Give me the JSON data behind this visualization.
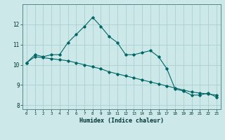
{
  "xlabel": "Humidex (Indice chaleur)",
  "bg_color": "#cce8e8",
  "grid_color": "#aacfcf",
  "line_color": "#006666",
  "xlim": [
    -0.5,
    23.5
  ],
  "ylim": [
    7.8,
    13.0
  ],
  "yticks": [
    8,
    9,
    10,
    11,
    12
  ],
  "xticks": [
    0,
    1,
    2,
    3,
    4,
    5,
    6,
    7,
    8,
    9,
    10,
    11,
    12,
    13,
    14,
    15,
    16,
    17,
    18,
    19,
    20,
    21,
    22,
    23
  ],
  "line1_x": [
    0,
    1,
    2,
    3,
    4,
    5,
    6,
    7,
    8,
    9,
    10,
    11,
    12,
    13,
    14,
    15,
    16,
    17,
    18,
    19,
    20,
    21,
    22,
    23
  ],
  "line1_y": [
    10.1,
    10.5,
    10.4,
    10.5,
    10.5,
    11.1,
    11.5,
    11.9,
    12.35,
    11.9,
    11.4,
    11.1,
    10.5,
    10.5,
    10.6,
    10.7,
    10.4,
    9.8,
    8.8,
    8.7,
    8.5,
    8.5,
    8.6,
    8.4
  ],
  "line2_x": [
    0,
    1,
    2,
    3,
    4,
    5,
    6,
    7,
    8,
    9,
    10,
    11,
    12,
    13,
    14,
    15,
    16,
    17,
    18,
    19,
    20,
    21,
    22,
    23
  ],
  "line2_y": [
    10.1,
    10.4,
    10.35,
    10.3,
    10.25,
    10.2,
    10.1,
    10.0,
    9.9,
    9.8,
    9.65,
    9.55,
    9.45,
    9.35,
    9.25,
    9.15,
    9.05,
    8.95,
    8.85,
    8.75,
    8.65,
    8.6,
    8.55,
    8.5
  ]
}
